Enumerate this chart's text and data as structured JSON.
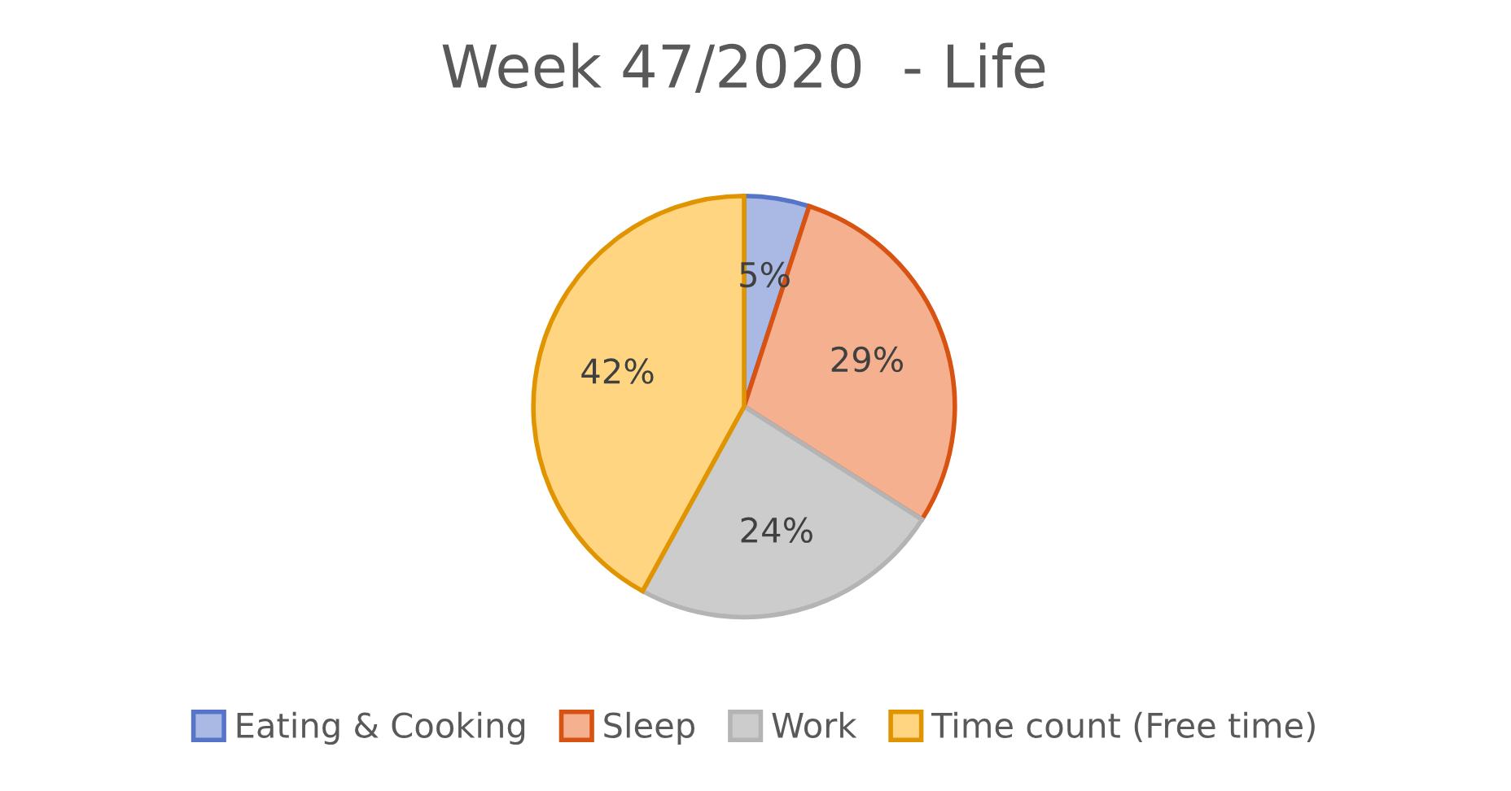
{
  "chart_data": {
    "type": "pie",
    "title": "Week 47/2020  - Life",
    "categories": [
      "Eating & Cooking",
      "Sleep",
      "Work",
      "Time count (Free time)"
    ],
    "values": [
      5,
      29,
      24,
      42
    ],
    "colors": [
      "#a9b9e4",
      "#f5b08f",
      "#cccccc",
      "#ffd582"
    ],
    "value_labels": [
      "5%",
      "29%",
      "24%",
      "42%"
    ],
    "legend": "bottom"
  }
}
